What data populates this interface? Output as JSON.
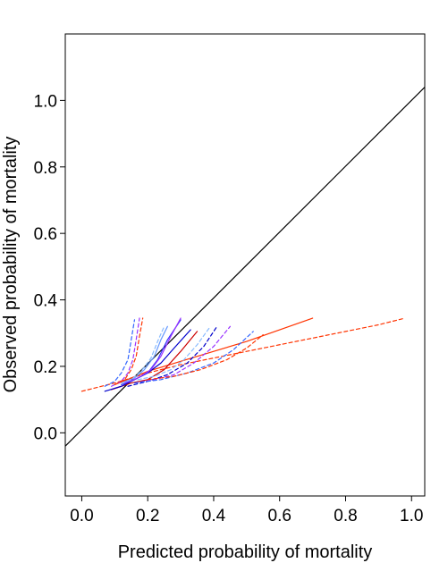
{
  "chart_data": {
    "type": "line",
    "title": "",
    "xlabel": "Predicted probability of mortality",
    "ylabel": "Observed probability of mortality",
    "xlim": [
      -0.05,
      1.04
    ],
    "ylim": [
      -0.19,
      1.2
    ],
    "xticks": [
      0.0,
      0.2,
      0.4,
      0.6,
      0.8,
      1.0
    ],
    "yticks": [
      0.0,
      0.2,
      0.4,
      0.6,
      0.8,
      1.0
    ],
    "xtick_labels": [
      "0.0",
      "0.2",
      "0.4",
      "0.6",
      "0.8",
      "1.0"
    ],
    "ytick_labels": [
      "0.0",
      "0.2",
      "0.4",
      "0.6",
      "0.8",
      "1.0"
    ],
    "grid": false,
    "legend": "none",
    "reference_line": {
      "x": [
        -0.05,
        1.04
      ],
      "y": [
        -0.04,
        1.04
      ],
      "color": "#000000"
    },
    "series": [
      {
        "color": "#ff3300",
        "dash": "solid",
        "x": [
          0.1,
          0.2,
          0.3,
          0.4,
          0.5,
          0.6,
          0.7
        ],
        "y": [
          0.145,
          0.185,
          0.215,
          0.245,
          0.275,
          0.31,
          0.345
        ]
      },
      {
        "color": "#ff3300",
        "dash": "dashed",
        "x": [
          0.0,
          0.1,
          0.2,
          0.3,
          0.4,
          0.5,
          0.6,
          0.7,
          0.8,
          0.9,
          0.98
        ],
        "y": [
          0.125,
          0.15,
          0.18,
          0.205,
          0.225,
          0.245,
          0.265,
          0.285,
          0.305,
          0.325,
          0.345
        ]
      },
      {
        "color": "#cc0000",
        "dash": "solid",
        "x": [
          0.09,
          0.15,
          0.2,
          0.25,
          0.3,
          0.35
        ],
        "y": [
          0.13,
          0.15,
          0.16,
          0.19,
          0.245,
          0.305
        ]
      },
      {
        "color": "#0000cc",
        "dash": "solid",
        "x": [
          0.07,
          0.12,
          0.16,
          0.2,
          0.24,
          0.28,
          0.33
        ],
        "y": [
          0.125,
          0.14,
          0.16,
          0.18,
          0.21,
          0.255,
          0.31
        ]
      },
      {
        "color": "#3333ff",
        "dash": "solid",
        "x": [
          0.12,
          0.16,
          0.2,
          0.23,
          0.26,
          0.3
        ],
        "y": [
          0.145,
          0.16,
          0.18,
          0.22,
          0.28,
          0.34
        ]
      },
      {
        "color": "#9933ff",
        "dash": "solid",
        "x": [
          0.13,
          0.17,
          0.21,
          0.24,
          0.27,
          0.3
        ],
        "y": [
          0.15,
          0.165,
          0.19,
          0.23,
          0.29,
          0.345
        ]
      },
      {
        "color": "#6699ff",
        "dash": "solid",
        "x": [
          0.12,
          0.16,
          0.19,
          0.22,
          0.24,
          0.26
        ],
        "y": [
          0.15,
          0.165,
          0.19,
          0.23,
          0.28,
          0.32
        ]
      },
      {
        "color": "#3366ff",
        "dash": "dashed",
        "x": [
          0.07,
          0.1,
          0.12,
          0.14,
          0.15,
          0.16
        ],
        "y": [
          0.14,
          0.155,
          0.18,
          0.22,
          0.28,
          0.34
        ]
      },
      {
        "color": "#9933ff",
        "dash": "dashed",
        "x": [
          0.09,
          0.12,
          0.14,
          0.155,
          0.165,
          0.175
        ],
        "y": [
          0.14,
          0.155,
          0.18,
          0.22,
          0.28,
          0.345
        ]
      },
      {
        "color": "#ff3300",
        "dash": "dashed",
        "x": [
          0.1,
          0.13,
          0.15,
          0.165,
          0.175,
          0.185
        ],
        "y": [
          0.145,
          0.16,
          0.19,
          0.23,
          0.29,
          0.345
        ]
      },
      {
        "color": "#0000cc",
        "dash": "dashed",
        "x": [
          0.14,
          0.2,
          0.26,
          0.32,
          0.37,
          0.41
        ],
        "y": [
          0.14,
          0.155,
          0.175,
          0.21,
          0.26,
          0.32
        ]
      },
      {
        "color": "#9933ff",
        "dash": "dashed",
        "x": [
          0.16,
          0.22,
          0.28,
          0.34,
          0.4,
          0.45
        ],
        "y": [
          0.15,
          0.16,
          0.175,
          0.21,
          0.26,
          0.32
        ]
      },
      {
        "color": "#3366ff",
        "dash": "dashed",
        "x": [
          0.16,
          0.24,
          0.32,
          0.4,
          0.46,
          0.52
        ],
        "y": [
          0.15,
          0.16,
          0.18,
          0.21,
          0.25,
          0.305
        ]
      },
      {
        "color": "#ff3300",
        "dash": "dashed",
        "x": [
          0.2,
          0.28,
          0.36,
          0.44,
          0.5,
          0.55
        ],
        "y": [
          0.16,
          0.17,
          0.19,
          0.22,
          0.255,
          0.295
        ]
      },
      {
        "color": "#88bbff",
        "dash": "dashed",
        "x": [
          0.17,
          0.22,
          0.27,
          0.31,
          0.35,
          0.39
        ],
        "y": [
          0.16,
          0.17,
          0.19,
          0.22,
          0.265,
          0.32
        ]
      },
      {
        "color": "#88bbff",
        "dash": "dashed",
        "x": [
          0.12,
          0.15,
          0.18,
          0.21,
          0.23,
          0.25
        ],
        "y": [
          0.15,
          0.16,
          0.185,
          0.225,
          0.275,
          0.32
        ]
      }
    ]
  }
}
